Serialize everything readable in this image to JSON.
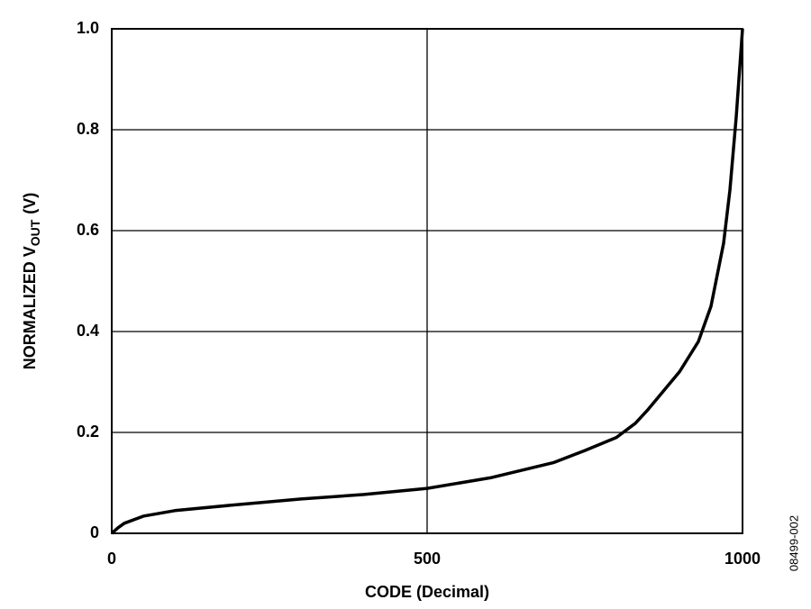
{
  "chart_data": {
    "type": "line",
    "x_label": "CODE (Decimal)",
    "y_label": {
      "main": "NORMALIZED V",
      "sub": "OUT",
      "unit": "(V)"
    },
    "side_note": "08499-002",
    "x": [
      0,
      10,
      20,
      50,
      100,
      200,
      300,
      400,
      500,
      600,
      700,
      750,
      800,
      830,
      850,
      900,
      930,
      950,
      970,
      980,
      990,
      1000
    ],
    "series": [
      {
        "color": "#000000",
        "values": [
          0,
          0.011,
          0.02,
          0.034,
          0.045,
          0.057,
          0.068,
          0.077,
          0.089,
          0.11,
          0.14,
          0.164,
          0.19,
          0.218,
          0.245,
          0.32,
          0.38,
          0.45,
          0.575,
          0.68,
          0.825,
          1.0
        ]
      }
    ],
    "xlim": [
      0,
      1000
    ],
    "ylim": [
      0,
      1
    ],
    "xticks": [
      0,
      500,
      1000
    ],
    "yticks": [
      0,
      0.2,
      0.4,
      0.6,
      0.8,
      {
        "value": 1,
        "label": "1.0"
      }
    ],
    "grid": true
  }
}
